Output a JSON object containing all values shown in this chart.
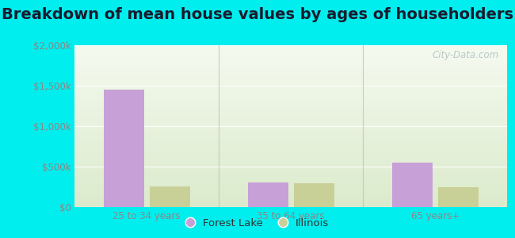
{
  "title": "Breakdown of mean house values by ages of householders",
  "categories": [
    "25 to 34 years",
    "35 to 64 years",
    "65 years+"
  ],
  "forest_lake_values": [
    1450000,
    300000,
    550000
  ],
  "illinois_values": [
    255000,
    290000,
    250000
  ],
  "forest_lake_color": "#c8a0d8",
  "illinois_color": "#c8d098",
  "ylim": [
    0,
    2000000
  ],
  "yticks": [
    0,
    500000,
    1000000,
    1500000,
    2000000
  ],
  "ytick_labels": [
    "$0",
    "$500k",
    "$1,000k",
    "$1,500k",
    "$2,000k"
  ],
  "bar_width": 0.28,
  "legend_labels": [
    "Forest Lake",
    "Illinois"
  ],
  "background_color": "#00eeee",
  "plot_bg_top": "#f5f8f2",
  "plot_bg_bottom": "#dde8cc",
  "watermark": "City-Data.com",
  "title_fontsize": 14,
  "tick_fontsize": 8.5,
  "legend_fontsize": 9.5,
  "tick_color": "#888888",
  "title_color": "#1a1a2e",
  "grid_color": "#e0e8d8",
  "divider_color": "#bbbbaa"
}
